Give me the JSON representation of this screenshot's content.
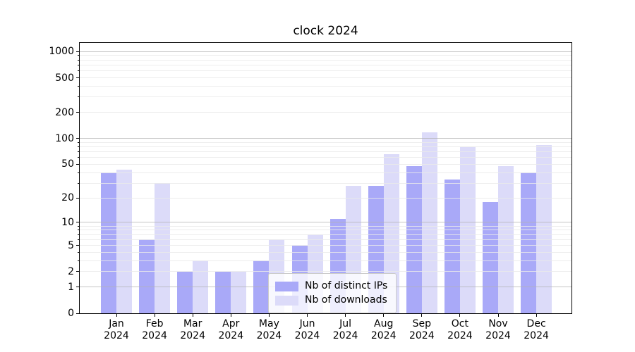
{
  "title": "clock 2024",
  "chart_data": {
    "type": "bar",
    "title": "clock 2024",
    "x_tick_labels": [
      [
        "Jan",
        "2024"
      ],
      [
        "Feb",
        "2024"
      ],
      [
        "Mar",
        "2024"
      ],
      [
        "Apr",
        "2024"
      ],
      [
        "May",
        "2024"
      ],
      [
        "Jun",
        "2024"
      ],
      [
        "Jul",
        "2024"
      ],
      [
        "Aug",
        "2024"
      ],
      [
        "Sep",
        "2024"
      ],
      [
        "Oct",
        "2024"
      ],
      [
        "Nov",
        "2024"
      ],
      [
        "Dec",
        "2024"
      ]
    ],
    "series": [
      {
        "name": "Nb of distinct IPs",
        "color": "#a9a9f8",
        "values": [
          40,
          6,
          2,
          2,
          3,
          5,
          11,
          28,
          48,
          33,
          18,
          40
        ]
      },
      {
        "name": "Nb of downloads",
        "color": "#dcdbf9",
        "values": [
          43,
          30,
          3,
          2,
          6,
          7,
          28,
          66,
          118,
          80,
          48,
          84
        ]
      }
    ],
    "yscale": "log10(1+v)",
    "yticks": [
      0,
      1,
      2,
      5,
      10,
      20,
      50,
      100,
      200,
      500,
      1000
    ],
    "major_gridlines": [
      1,
      10,
      100,
      1000
    ],
    "minor_gridlines": [
      2,
      3,
      4,
      5,
      6,
      7,
      8,
      9,
      20,
      30,
      40,
      50,
      60,
      70,
      80,
      90,
      200,
      300,
      400,
      500,
      600,
      700,
      800,
      900
    ],
    "ylim": [
      0,
      1258
    ],
    "grid": true,
    "legend_position": "lower center-left",
    "colors": {
      "grid_major": "#b1b1b1",
      "grid_minor": "#eaeaea",
      "axis": "#000000",
      "background": "#ffffff"
    }
  }
}
